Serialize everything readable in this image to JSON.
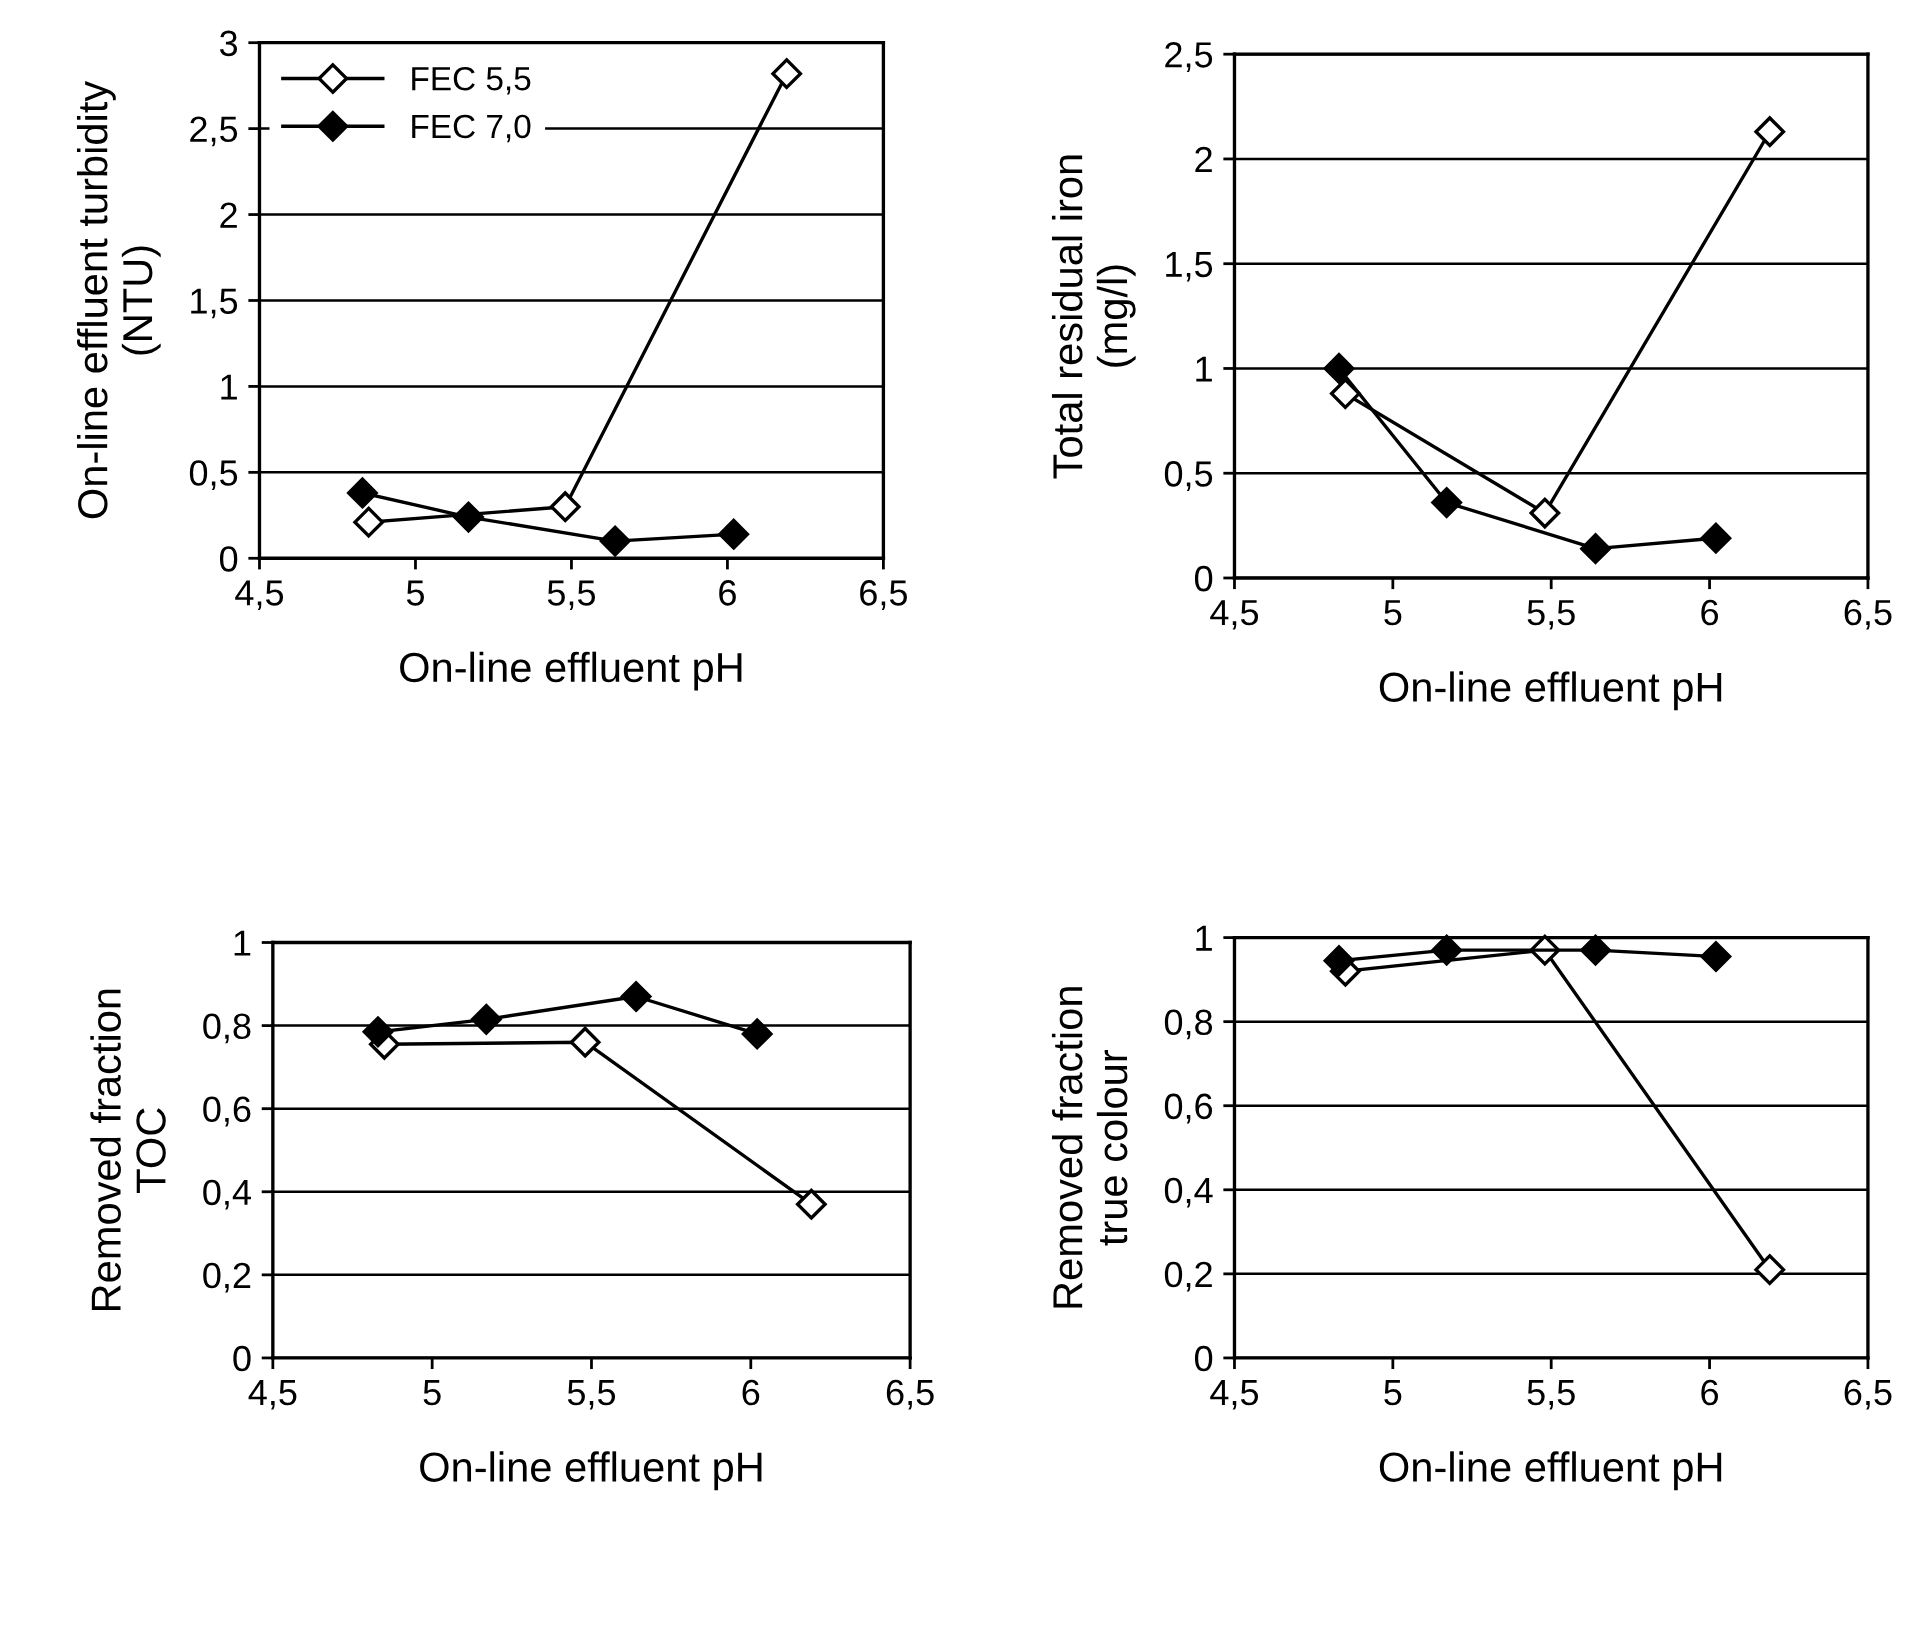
{
  "chart_data": [
    {
      "type": "line",
      "xlabel": "On-line effluent pH",
      "ylabel": "On-line effluent turbidity\n(NTU)",
      "xlim": [
        4.5,
        6.5
      ],
      "ylim": [
        0,
        3
      ],
      "xticks": [
        {
          "value": 4.5,
          "label": "4,5"
        },
        5,
        {
          "value": 5.5,
          "label": "5,5"
        },
        6,
        {
          "value": 6.5,
          "label": "6,5"
        }
      ],
      "yticks": [
        0,
        {
          "value": 0.5,
          "label": "0,5"
        },
        1,
        {
          "value": 1.5,
          "label": "1,5"
        },
        2,
        {
          "value": 2.5,
          "label": "2,5"
        },
        3
      ],
      "grid": "y",
      "legend": "top left",
      "marker": "diamond",
      "series": [
        {
          "name": "FEC 5,5",
          "color": "#ffffff",
          "x": [
            4.85,
            5.48,
            6.19
          ],
          "values": [
            0.21,
            0.3,
            2.82
          ]
        },
        {
          "name": "FEC 7,0",
          "color": "#000000",
          "x": [
            4.83,
            5.17,
            5.64,
            6.02
          ],
          "values": [
            0.38,
            0.24,
            0.1,
            0.14
          ]
        }
      ]
    },
    {
      "type": "line",
      "xlabel": "On-line effluent pH",
      "ylabel": "Total residual iron\n(mg/l)",
      "xlim": [
        4.5,
        6.5
      ],
      "ylim": [
        0,
        2.5
      ],
      "xticks": [
        {
          "value": 4.5,
          "label": "4,5"
        },
        5,
        {
          "value": 5.5,
          "label": "5,5"
        },
        6,
        {
          "value": 6.5,
          "label": "6,5"
        }
      ],
      "yticks": [
        0,
        {
          "value": 0.5,
          "label": "0,5"
        },
        1,
        {
          "value": 1.5,
          "label": "1,5"
        },
        2,
        {
          "value": 2.5,
          "label": "2,5"
        }
      ],
      "grid": "y",
      "marker": "diamond",
      "series": [
        {
          "color": "#ffffff",
          "x": [
            4.85,
            5.48,
            6.19
          ],
          "values": [
            0.88,
            0.31,
            2.13
          ]
        },
        {
          "color": "#000000",
          "x": [
            4.83,
            5.17,
            5.64,
            6.02
          ],
          "values": [
            1.0,
            0.36,
            0.14,
            0.19
          ]
        }
      ]
    },
    {
      "type": "line",
      "xlabel": "On-line effluent pH",
      "ylabel": "Removed fraction\nTOC",
      "xlim": [
        4.5,
        6.5
      ],
      "ylim": [
        0,
        1
      ],
      "xticks": [
        {
          "value": 4.5,
          "label": "4,5"
        },
        5,
        {
          "value": 5.5,
          "label": "5,5"
        },
        6,
        {
          "value": 6.5,
          "label": "6,5"
        }
      ],
      "yticks": [
        0,
        {
          "value": 0.2,
          "label": "0,2"
        },
        {
          "value": 0.4,
          "label": "0,4"
        },
        {
          "value": 0.6,
          "label": "0,6"
        },
        {
          "value": 0.8,
          "label": "0,8"
        },
        1
      ],
      "grid": "y",
      "marker": "diamond",
      "series": [
        {
          "color": "#ffffff",
          "x": [
            4.85,
            5.48,
            6.19
          ],
          "values": [
            0.755,
            0.76,
            0.37
          ]
        },
        {
          "color": "#000000",
          "x": [
            4.83,
            5.17,
            5.64,
            6.02
          ],
          "values": [
            0.785,
            0.815,
            0.87,
            0.78
          ]
        }
      ]
    },
    {
      "type": "line",
      "xlabel": "On-line effluent pH",
      "ylabel": "Removed fraction\ntrue colour",
      "xlim": [
        4.5,
        6.5
      ],
      "ylim": [
        0,
        1
      ],
      "xticks": [
        {
          "value": 4.5,
          "label": "4,5"
        },
        5,
        {
          "value": 5.5,
          "label": "5,5"
        },
        6,
        {
          "value": 6.5,
          "label": "6,5"
        }
      ],
      "yticks": [
        0,
        {
          "value": 0.2,
          "label": "0,2"
        },
        {
          "value": 0.4,
          "label": "0,4"
        },
        {
          "value": 0.6,
          "label": "0,6"
        },
        {
          "value": 0.8,
          "label": "0,8"
        },
        1
      ],
      "grid": "y",
      "marker": "diamond",
      "series": [
        {
          "color": "#ffffff",
          "x": [
            4.85,
            5.48,
            6.19
          ],
          "values": [
            0.92,
            0.97,
            0.21
          ]
        },
        {
          "color": "#000000",
          "x": [
            4.83,
            5.17,
            5.64,
            6.02
          ],
          "values": [
            0.945,
            0.97,
            0.97,
            0.955
          ]
        }
      ]
    }
  ]
}
